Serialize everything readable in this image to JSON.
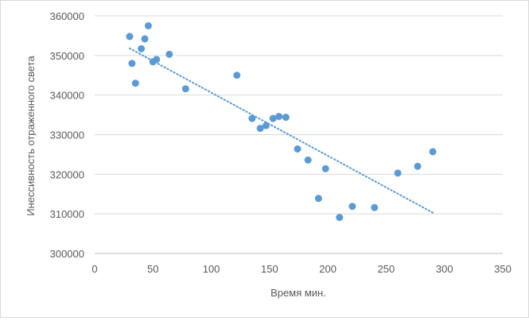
{
  "chart_data": {
    "type": "scatter",
    "title": "",
    "xlabel": "Время мин.",
    "ylabel": "Инессивность отраженного света",
    "xlim": [
      0,
      350
    ],
    "ylim": [
      300000,
      360000
    ],
    "x_ticks": [
      0,
      50,
      100,
      150,
      200,
      250,
      300,
      350
    ],
    "y_ticks": [
      300000,
      310000,
      320000,
      330000,
      340000,
      350000,
      360000
    ],
    "grid": true,
    "legend": "none",
    "marker_color": "#5b9bd5",
    "trendline": {
      "type": "linear",
      "style": "dotted",
      "color": "#5b9bd5",
      "x_start": 30,
      "y_start": 351800,
      "x_end": 290,
      "y_end": 310300
    },
    "series": [
      {
        "points": [
          [
            30,
            354800
          ],
          [
            32,
            348000
          ],
          [
            35,
            343000
          ],
          [
            40,
            351700
          ],
          [
            43,
            354200
          ],
          [
            46,
            357500
          ],
          [
            50,
            348400
          ],
          [
            53,
            349000
          ],
          [
            64,
            350300
          ],
          [
            78,
            341600
          ],
          [
            122,
            345000
          ],
          [
            135,
            334100
          ],
          [
            142,
            331600
          ],
          [
            147,
            332300
          ],
          [
            153,
            334100
          ],
          [
            158,
            334600
          ],
          [
            164,
            334400
          ],
          [
            174,
            326400
          ],
          [
            183,
            323600
          ],
          [
            192,
            313900
          ],
          [
            198,
            321400
          ],
          [
            210,
            309100
          ],
          [
            221,
            311900
          ],
          [
            240,
            311600
          ],
          [
            260,
            320300
          ],
          [
            277,
            322000
          ],
          [
            290,
            325700
          ]
        ]
      }
    ]
  }
}
